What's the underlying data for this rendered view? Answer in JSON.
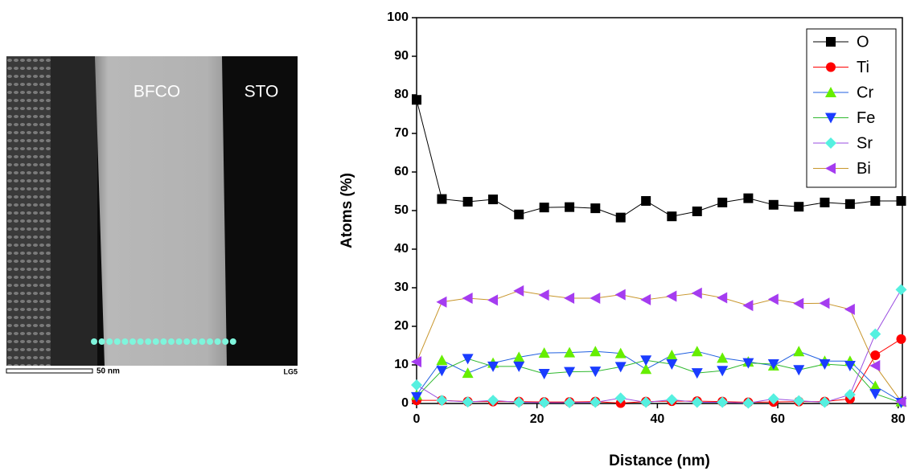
{
  "image": {
    "labels": [
      "BFCO",
      "STO"
    ],
    "scale_bar": "50 nm",
    "id": "LG5"
  },
  "chart_data": {
    "type": "line",
    "xlabel": "Distance (nm)",
    "ylabel": "Atoms (%)",
    "x": [
      0,
      4.2,
      8.5,
      12.7,
      17,
      21.2,
      25.4,
      29.7,
      33.9,
      38.1,
      42.4,
      46.6,
      50.8,
      55.1,
      59.3,
      63.5,
      67.8,
      72,
      76.2,
      80.5
    ],
    "series": [
      {
        "name": "O",
        "color": "#000000",
        "line_color": "#000000",
        "marker": "square",
        "values": [
          78.7,
          53,
          52.3,
          52.9,
          49,
          50.8,
          50.9,
          50.6,
          48.2,
          52.5,
          48.5,
          49.8,
          52.1,
          53.2,
          51.5,
          51,
          52.1,
          51.7,
          52.5,
          52.5
        ]
      },
      {
        "name": "Ti",
        "color": "#ff0000",
        "line_color": "#ff0000",
        "marker": "circle",
        "values": [
          0.8,
          0.8,
          0.5,
          0.5,
          0.5,
          0.4,
          0.4,
          0.5,
          0.1,
          0.5,
          0.6,
          0.6,
          0.5,
          0.3,
          0.4,
          0.5,
          0.5,
          1.2,
          12.5,
          16.7
        ]
      },
      {
        "name": "Cr",
        "color": "#66ee00",
        "line_color": "#1f5fe0",
        "marker": "tri-up",
        "values": [
          2.2,
          11.2,
          7.9,
          10.5,
          12,
          13.1,
          13.2,
          13.5,
          13,
          8.9,
          12.5,
          13.5,
          11.8,
          10.8,
          9.8,
          13.5,
          11,
          11,
          4.5,
          0.5
        ]
      },
      {
        "name": "Fe",
        "color": "#1a3cff",
        "line_color": "#2eb82e",
        "marker": "tri-down",
        "values": [
          1.7,
          8.5,
          11.6,
          9.6,
          9.6,
          7.7,
          8.2,
          8.3,
          9.5,
          11.2,
          10.2,
          7.9,
          8.5,
          10.5,
          10.2,
          8.7,
          10.2,
          9.8,
          2.5,
          0.2
        ]
      },
      {
        "name": "Sr",
        "color": "#55f0e0",
        "line_color": "#9a4de0",
        "marker": "diamond",
        "values": [
          4.8,
          0.8,
          0.4,
          0.8,
          0.3,
          0.2,
          0.2,
          0.3,
          1.4,
          0.3,
          1,
          0.3,
          0.3,
          0.1,
          1.2,
          0.7,
          0.3,
          2.3,
          18,
          29.5
        ]
      },
      {
        "name": "Bi",
        "color": "#a53cf0",
        "line_color": "#c8962c",
        "marker": "tri-left",
        "values": [
          10.8,
          26.3,
          27.3,
          26.8,
          29.2,
          28.1,
          27.3,
          27.3,
          28.2,
          26.9,
          27.8,
          28.6,
          27.4,
          25.4,
          27,
          25.9,
          26,
          24.4,
          9.8,
          0.5
        ]
      }
    ],
    "xlim": [
      0,
      80.7
    ],
    "ylim": [
      0,
      100
    ],
    "xticks": [
      0,
      20,
      40,
      60,
      80
    ],
    "yticks": [
      0,
      10,
      20,
      30,
      40,
      50,
      60,
      70,
      80,
      90,
      100
    ],
    "legend": "upper right"
  }
}
